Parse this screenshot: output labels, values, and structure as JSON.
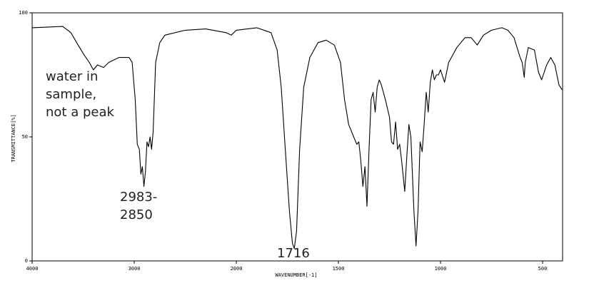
{
  "chart_data": {
    "type": "line",
    "xlabel": "WAVENUMBER[-1]",
    "ylabel": "TRANSMITTANCE[%]",
    "xlim": [
      4000,
      400
    ],
    "xticks": [
      4000,
      3000,
      2000,
      1500,
      1000,
      500
    ],
    "ylim": [
      0,
      100
    ],
    "yticks": [
      0,
      50,
      100
    ],
    "annotations": [
      {
        "lines": [
          "water in",
          "sample,",
          "not a peak"
        ]
      },
      {
        "lines": [
          "2983-",
          "2850"
        ]
      },
      {
        "lines": [
          "1716"
        ]
      }
    ],
    "series": [
      {
        "color": "#000000",
        "x": [
          4000,
          3700,
          3620,
          3550,
          3490,
          3440,
          3400,
          3360,
          3300,
          3250,
          3150,
          3050,
          3020,
          2990,
          2970,
          2950,
          2935,
          2920,
          2905,
          2890,
          2875,
          2860,
          2845,
          2830,
          2815,
          2790,
          2750,
          2700,
          2500,
          2300,
          2100,
          2050,
          2000,
          1900,
          1830,
          1800,
          1780,
          1760,
          1740,
          1725,
          1716,
          1705,
          1690,
          1670,
          1640,
          1600,
          1560,
          1520,
          1490,
          1470,
          1450,
          1440,
          1425,
          1410,
          1400,
          1390,
          1380,
          1370,
          1360,
          1350,
          1340,
          1330,
          1320,
          1310,
          1300,
          1290,
          1270,
          1250,
          1240,
          1230,
          1220,
          1210,
          1200,
          1190,
          1175,
          1165,
          1155,
          1145,
          1130,
          1120,
          1110,
          1100,
          1090,
          1080,
          1070,
          1060,
          1050,
          1040,
          1030,
          1020,
          1010,
          1000,
          980,
          960,
          920,
          880,
          850,
          820,
          790,
          750,
          700,
          670,
          640,
          610,
          600,
          590,
          585,
          570,
          540,
          520,
          505,
          480,
          460,
          440,
          420,
          405
        ],
        "values": [
          94,
          94.5,
          92,
          87,
          83,
          80,
          77,
          79,
          78,
          80,
          82,
          82,
          80,
          65,
          47,
          45,
          35,
          38,
          30,
          36,
          48,
          46,
          50,
          45,
          52,
          80,
          88,
          91,
          93,
          93.5,
          92,
          91,
          93,
          94,
          92,
          85,
          70,
          45,
          20,
          7,
          5,
          12,
          45,
          70,
          82,
          88,
          89,
          87,
          80,
          65,
          55,
          53,
          50,
          47,
          48,
          40,
          30,
          38,
          22,
          45,
          65,
          68,
          60,
          70,
          73,
          71,
          65,
          58,
          48,
          47,
          56,
          45,
          47,
          40,
          28,
          42,
          55,
          50,
          20,
          6,
          20,
          48,
          44,
          55,
          68,
          60,
          72,
          77,
          73,
          75,
          75,
          77,
          72,
          80,
          86,
          90,
          90,
          87,
          91,
          93,
          94,
          93,
          90,
          82,
          80,
          74,
          80,
          86,
          85,
          76,
          73,
          79,
          82,
          79,
          71,
          69
        ]
      }
    ]
  }
}
